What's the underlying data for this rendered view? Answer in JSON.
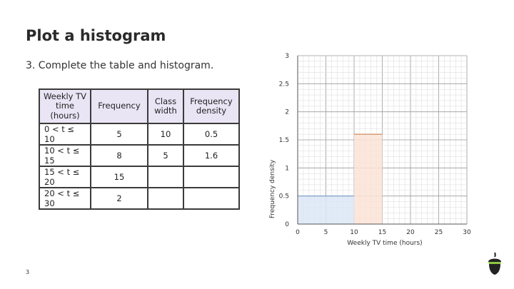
{
  "slide": {
    "title": "Plot a histogram",
    "question": "3. Complete the table and histogram.",
    "page_number": "3"
  },
  "table": {
    "headers": [
      "Weekly TV time (hours)",
      "Frequency",
      "Class width",
      "Frequency density"
    ],
    "rows": [
      [
        "0 < t ≤ 10",
        "5",
        "10",
        "0.5"
      ],
      [
        "10 < t ≤ 15",
        "8",
        "5",
        "1.6"
      ],
      [
        "15 < t ≤ 20",
        "15",
        "",
        ""
      ],
      [
        "20 < t ≤ 30",
        "2",
        "",
        ""
      ]
    ]
  },
  "chart_data": {
    "type": "bar",
    "xlabel": "Weekly TV time (hours)",
    "ylabel": "Frequency density",
    "xlim": [
      0,
      30
    ],
    "ylim": [
      0,
      3
    ],
    "x_ticks": [
      "0",
      "5",
      "10",
      "15",
      "20",
      "25",
      "30"
    ],
    "y_ticks": [
      "0",
      "0.5",
      "1",
      "1.5",
      "2",
      "2.5",
      "3"
    ],
    "grid": true,
    "bars": [
      {
        "x_start": 0,
        "x_end": 10,
        "height": 0.5,
        "color": "#dce8f6",
        "stroke": "#7a9cc6"
      },
      {
        "x_start": 10,
        "x_end": 15,
        "height": 1.6,
        "color": "#fbe3d6",
        "stroke": "#d08a63"
      }
    ]
  },
  "icons": {
    "logo": "acorn-icon"
  }
}
